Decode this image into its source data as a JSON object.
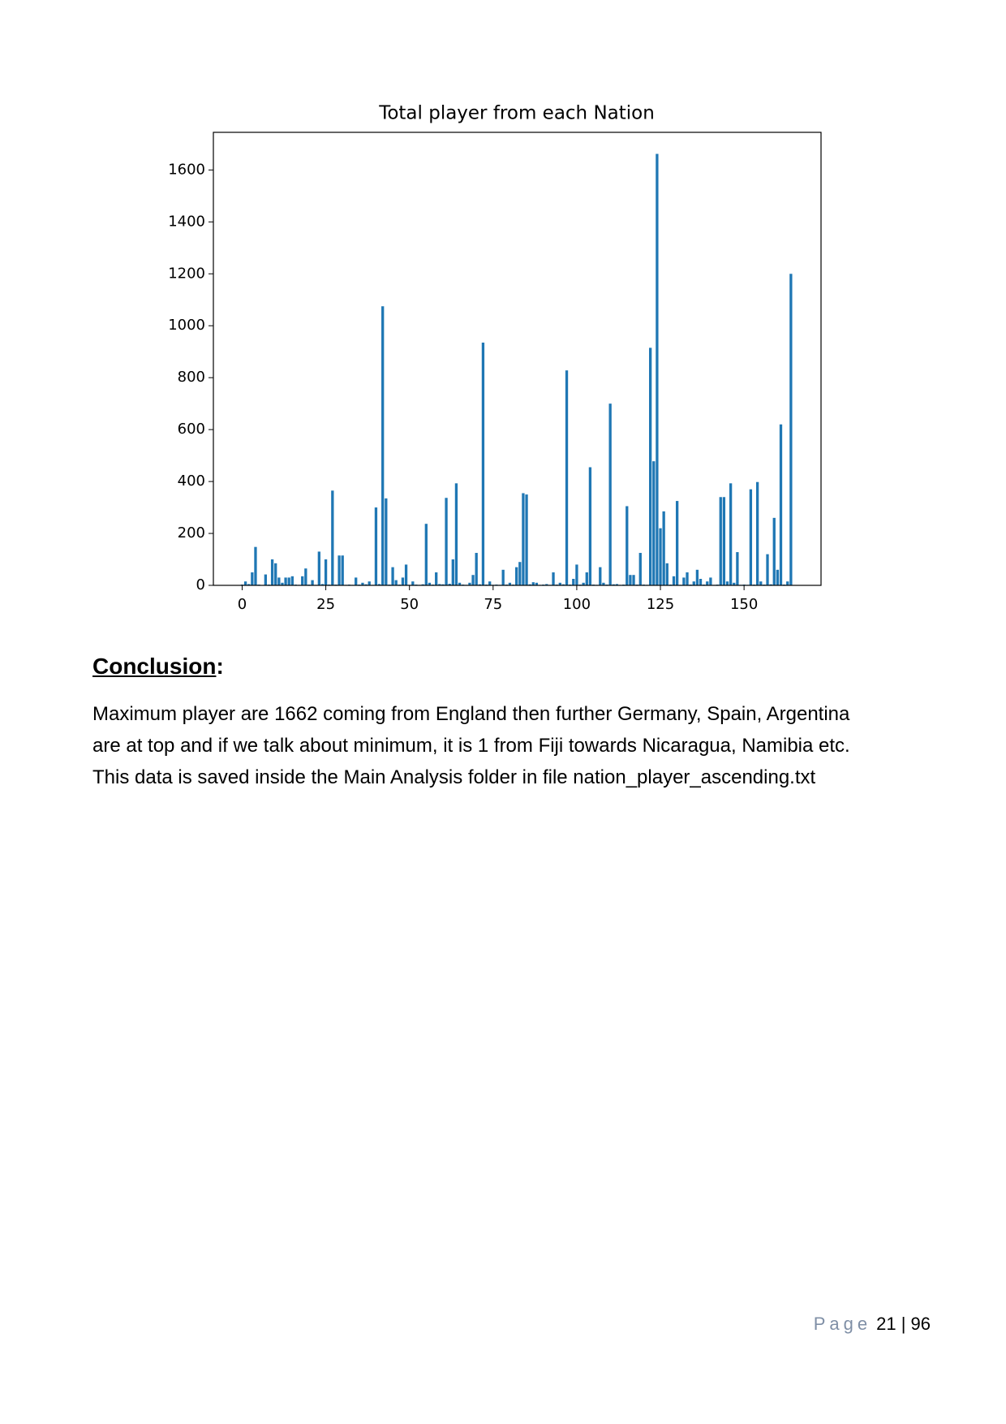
{
  "chart_data": {
    "type": "bar",
    "title": "Total player from each Nation",
    "color": "#1f77b4",
    "x": [
      0,
      1,
      2,
      3,
      4,
      5,
      6,
      7,
      8,
      9,
      10,
      11,
      12,
      13,
      14,
      15,
      16,
      17,
      18,
      19,
      20,
      21,
      22,
      23,
      24,
      25,
      26,
      27,
      28,
      29,
      30,
      31,
      32,
      33,
      34,
      35,
      36,
      37,
      38,
      39,
      40,
      41,
      42,
      43,
      44,
      45,
      46,
      47,
      48,
      49,
      50,
      51,
      52,
      53,
      54,
      55,
      56,
      57,
      58,
      59,
      60,
      61,
      62,
      63,
      64,
      65,
      66,
      67,
      68,
      69,
      70,
      71,
      72,
      73,
      74,
      75,
      76,
      77,
      78,
      79,
      80,
      81,
      82,
      83,
      84,
      85,
      86,
      87,
      88,
      89,
      90,
      91,
      92,
      93,
      94,
      95,
      96,
      97,
      98,
      99,
      100,
      101,
      102,
      103,
      104,
      105,
      106,
      107,
      108,
      109,
      110,
      111,
      112,
      113,
      114,
      115,
      116,
      117,
      118,
      119,
      120,
      121,
      122,
      123,
      124,
      125,
      126,
      127,
      128,
      129,
      130,
      131,
      132,
      133,
      134,
      135,
      136,
      137,
      138,
      139,
      140,
      141,
      142,
      143,
      144,
      145,
      146,
      147,
      148,
      149,
      150,
      151,
      152,
      153,
      154,
      155,
      156,
      157,
      158,
      159,
      160,
      161,
      162,
      163,
      164
    ],
    "values": [
      3,
      15,
      5,
      50,
      148,
      3,
      1,
      42,
      3,
      100,
      85,
      30,
      10,
      30,
      30,
      35,
      3,
      2,
      35,
      65,
      3,
      20,
      2,
      130,
      5,
      100,
      3,
      365,
      3,
      115,
      115,
      2,
      3,
      2,
      30,
      3,
      10,
      4,
      15,
      2,
      300,
      5,
      1075,
      335,
      3,
      70,
      20,
      3,
      30,
      80,
      2,
      15,
      3,
      2,
      4,
      237,
      10,
      3,
      50,
      5,
      4,
      337,
      6,
      100,
      393,
      10,
      3,
      2,
      10,
      40,
      125,
      4,
      935,
      3,
      15,
      2,
      3,
      2,
      60,
      3,
      10,
      3,
      70,
      90,
      355,
      350,
      4,
      12,
      10,
      2,
      3,
      5,
      2,
      50,
      3,
      10,
      4,
      828,
      3,
      25,
      80,
      3,
      10,
      50,
      455,
      3,
      2,
      70,
      10,
      3,
      700,
      4,
      5,
      2,
      3,
      305,
      40,
      40,
      3,
      125,
      3,
      2,
      915,
      478,
      1662,
      220,
      285,
      85,
      3,
      35,
      325,
      2,
      30,
      50,
      3,
      15,
      60,
      25,
      3,
      15,
      30,
      2,
      3,
      340,
      340,
      15,
      393,
      10,
      128,
      2,
      3,
      2,
      370,
      3,
      398,
      15,
      3,
      120,
      4,
      260,
      60,
      620,
      3,
      15,
      1200
    ],
    "xlim": [
      -8.6,
      173
    ],
    "ylim": [
      0,
      1745
    ],
    "xticks": [
      0,
      25,
      50,
      75,
      100,
      125,
      150
    ],
    "yticks": [
      0,
      200,
      400,
      600,
      800,
      1000,
      1200,
      1400,
      1600
    ]
  },
  "document": {
    "heading": "Conclusion",
    "heading_suffix": ":",
    "paragraph": [
      "Maximum player are 1662 coming from England then further Germany, Spain, Argentina",
      "are at top and if we talk about minimum, it is 1 from Fiji towards Nicaragua, Namibia etc.",
      "This data is saved inside the Main Analysis folder in file nation_player_ascending.txt"
    ],
    "footer": {
      "page_label": "Page",
      "page_number": "21 | 96"
    }
  }
}
